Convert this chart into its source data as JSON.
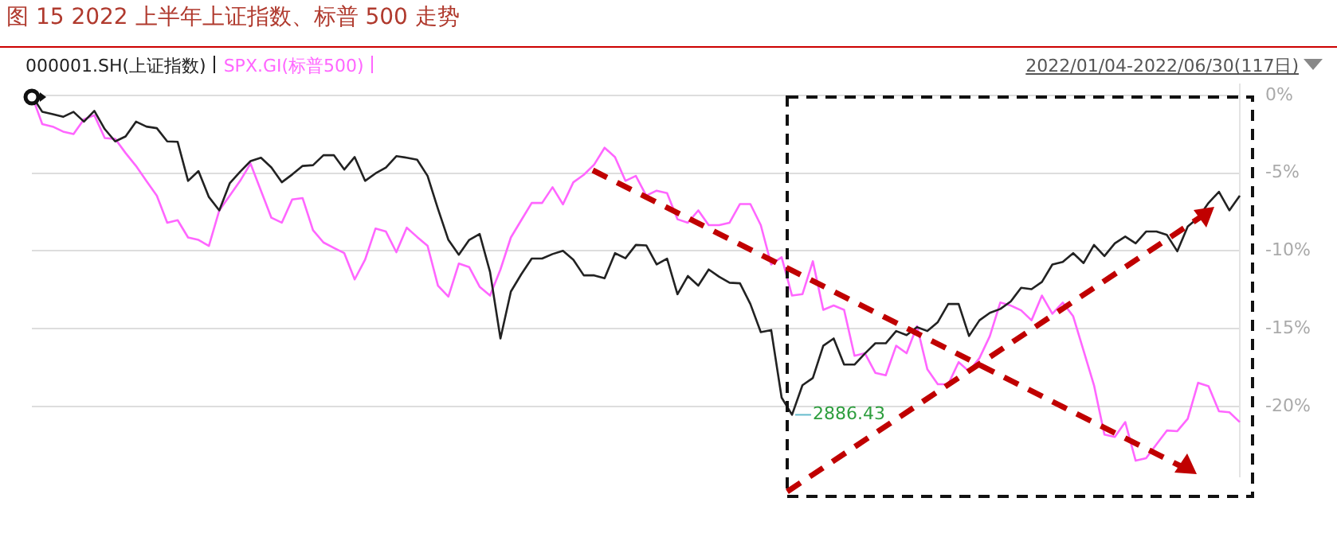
{
  "chart_data": {
    "type": "line",
    "title": "图 15 2022 上半年上证指数、标普 500 走势",
    "annotations": [
      "2022/01/04-2022/06/30(117日)",
      "2886.43"
    ],
    "categories": [
      null,
      null,
      null,
      null,
      null,
      null,
      null,
      null,
      null,
      null,
      null,
      null,
      null,
      null,
      null,
      null,
      null,
      null,
      null,
      null,
      null,
      null,
      null,
      null,
      null,
      null,
      null,
      null,
      null,
      null,
      null,
      null,
      null,
      null,
      null,
      null,
      null,
      null,
      null,
      null,
      null,
      null,
      null,
      null,
      null,
      null,
      null,
      null,
      null,
      null,
      null,
      null,
      null,
      null,
      null,
      null,
      null,
      null,
      null,
      null,
      null,
      null,
      null,
      null,
      null,
      null,
      null,
      null,
      null,
      null,
      null,
      null,
      null,
      null,
      null,
      null,
      null,
      null,
      null,
      null,
      null,
      null,
      null,
      null,
      null,
      null,
      null,
      null,
      null,
      null,
      null,
      null,
      null,
      null,
      null,
      null,
      null,
      null,
      null,
      null,
      null,
      null,
      null,
      null,
      null,
      null,
      null,
      null,
      null,
      null,
      null,
      null,
      null,
      null,
      null,
      null,
      null
    ],
    "series": [
      {
        "name": "000001.SH(上证指数)",
        "color": "#222222",
        "values": [
          0,
          -1.05,
          -1.2,
          -1.37,
          -1.05,
          -1.68,
          -0.99,
          -2.16,
          -2.95,
          -2.63,
          -1.68,
          -2.0,
          -2.1,
          -2.95,
          -2.98,
          -5.49,
          -4.86,
          -6.53,
          -7.39,
          -5.65,
          -4.9,
          -4.22,
          -4.0,
          -4.63,
          -5.58,
          -5.08,
          -4.53,
          -4.48,
          -3.84,
          -3.84,
          -4.76,
          -3.96,
          -5.49,
          -5.01,
          -4.63,
          -3.9,
          -4.0,
          -4.13,
          -5.17,
          -7.3,
          -9.29,
          -10.24,
          -9.29,
          -8.91,
          -11.35,
          -15.63,
          -12.61,
          -11.5,
          -10.49,
          -10.49,
          -10.2,
          -9.99,
          -10.56,
          -11.57,
          -11.57,
          -11.76,
          -10.14,
          -10.47,
          -9.61,
          -9.64,
          -10.87,
          -10.49,
          -12.78,
          -11.61,
          -12.23,
          -11.19,
          -11.66,
          -12.04,
          -12.08,
          -13.41,
          -15.22,
          -15.09,
          -19.43,
          -20.54,
          -18.64,
          -18.17,
          -16.1,
          -15.63,
          -17.31,
          -17.31,
          -16.6,
          -15.94,
          -15.94,
          -15.15,
          -15.41,
          -14.9,
          -15.15,
          -14.58,
          -13.41,
          -13.41,
          -15.47,
          -14.46,
          -13.98,
          -13.73,
          -13.25,
          -12.37,
          -12.46,
          -11.99,
          -10.87,
          -10.71,
          -10.14,
          -10.78,
          -9.61,
          -10.33,
          -9.51,
          -9.07,
          -9.51,
          -8.75,
          -8.75,
          -8.97,
          -10.02,
          -8.43,
          -7.86,
          -6.91,
          -6.19,
          -7.39,
          -6.44
        ]
      },
      {
        "name": "SPX.GI(标普500)",
        "color": "#ff66ff",
        "values": [
          0,
          -1.84,
          -2.0,
          -2.32,
          -2.48,
          -1.53,
          -1.27,
          -2.73,
          -2.79,
          -3.7,
          -4.53,
          -5.5,
          -6.44,
          -8.18,
          -8.02,
          -9.13,
          -9.29,
          -9.67,
          -7.39,
          -6.44,
          -5.49,
          -4.38,
          -6.12,
          -7.86,
          -8.18,
          -6.69,
          -6.6,
          -8.66,
          -9.45,
          -9.8,
          -10.14,
          -11.83,
          -10.56,
          -8.56,
          -8.75,
          -10.08,
          -8.5,
          -9.1,
          -9.67,
          -12.23,
          -12.94,
          -10.81,
          -11.04,
          -12.3,
          -12.87,
          -11.19,
          -9.13,
          -8.02,
          -6.91,
          -6.91,
          -5.9,
          -7.0,
          -5.58,
          -5.1,
          -4.44,
          -3.36,
          -3.96,
          -5.49,
          -5.17,
          -6.44,
          -6.12,
          -6.28,
          -7.96,
          -8.18,
          -7.39,
          -8.34,
          -8.34,
          -8.18,
          -6.98,
          -6.98,
          -8.34,
          -10.87,
          -10.4,
          -12.87,
          -12.78,
          -10.66,
          -13.79,
          -13.51,
          -13.79,
          -16.74,
          -16.58,
          -17.84,
          -18.0,
          -16.1,
          -16.58,
          -14.84,
          -17.62,
          -18.57,
          -18.57,
          -17.15,
          -17.75,
          -16.89,
          -15.47,
          -13.32,
          -13.51,
          -13.82,
          -14.46,
          -12.87,
          -14.04,
          -13.32,
          -14.2,
          -16.42,
          -18.64,
          -21.81,
          -21.96,
          -21.01,
          -23.49,
          -23.33,
          -22.44,
          -21.55,
          -21.59,
          -20.79,
          -18.48,
          -18.7,
          -20.31,
          -20.38,
          -21.01
        ]
      }
    ],
    "ylim": [
      -24.5,
      0.7
    ],
    "yticks": [
      {
        "value": 0,
        "label": "0%"
      },
      {
        "value": -5,
        "label": "-5%"
      },
      {
        "value": -10,
        "label": "-10%"
      },
      {
        "value": -15,
        "label": "-15%"
      },
      {
        "value": -20,
        "label": "-20%"
      }
    ],
    "tick_labels": "y",
    "grid": "y",
    "legend": "top left",
    "marker": "none",
    "line_style": "solid"
  }
}
